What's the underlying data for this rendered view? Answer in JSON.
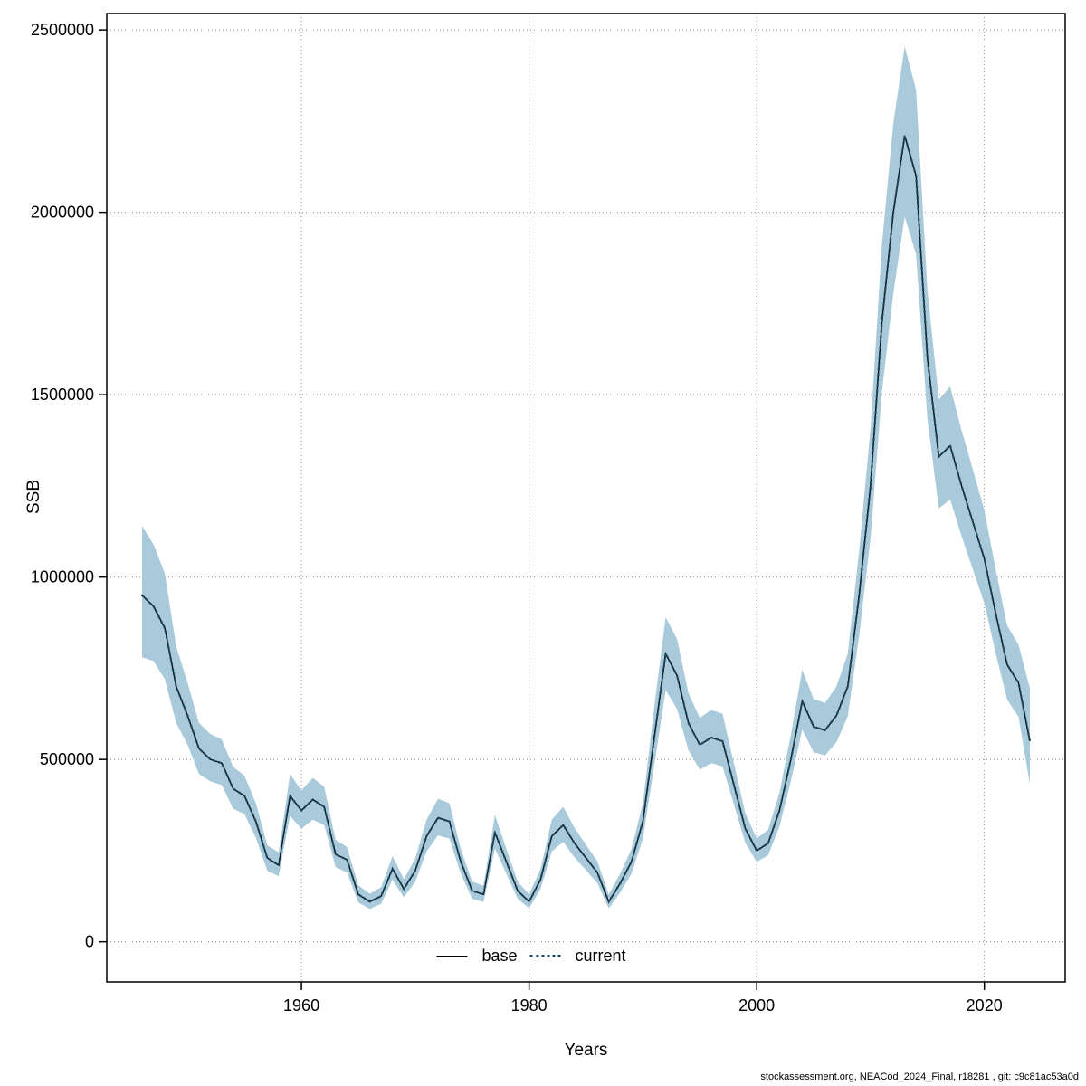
{
  "footer": "stockassessment.org, NEACod_2024_Final, r18281 , git: c9c81ac53a0d",
  "chart_data": {
    "type": "line",
    "title": "",
    "xlabel": "Years",
    "ylabel": "SSB",
    "xlim": [
      1942.9,
      2027.1
    ],
    "ylim": [
      0,
      2500000
    ],
    "x_ticks": [
      1960,
      1980,
      2000,
      2020
    ],
    "y_ticks": [
      0,
      500000,
      1000000,
      1500000,
      2000000,
      2500000
    ],
    "grid": "dotted",
    "legend_position": "bottom-center-inside",
    "band_color": "#a9cadb",
    "grid_color": "#8c8c8c",
    "legend": [
      {
        "label": "base",
        "style": "solid",
        "color": "#000000"
      },
      {
        "label": "current",
        "style": "dotted",
        "color": "#1c4557"
      }
    ],
    "x": [
      1946,
      1947,
      1948,
      1949,
      1950,
      1951,
      1952,
      1953,
      1954,
      1955,
      1956,
      1957,
      1958,
      1959,
      1960,
      1961,
      1962,
      1963,
      1964,
      1965,
      1966,
      1967,
      1968,
      1969,
      1970,
      1971,
      1972,
      1973,
      1974,
      1975,
      1976,
      1977,
      1978,
      1979,
      1980,
      1981,
      1982,
      1983,
      1984,
      1985,
      1986,
      1987,
      1988,
      1989,
      1990,
      1991,
      1992,
      1993,
      1994,
      1995,
      1996,
      1997,
      1998,
      1999,
      2000,
      2001,
      2002,
      2003,
      2004,
      2005,
      2006,
      2007,
      2008,
      2009,
      2010,
      2011,
      2012,
      2013,
      2014,
      2015,
      2016,
      2017,
      2018,
      2019,
      2020,
      2021,
      2022,
      2023,
      2024
    ],
    "series": [
      {
        "name": "base",
        "style": "solid",
        "color": "#000000",
        "y": [
          950000,
          920000,
          860000,
          700000,
          620000,
          530000,
          500000,
          490000,
          420000,
          400000,
          330000,
          230000,
          210000,
          400000,
          360000,
          390000,
          370000,
          240000,
          225000,
          130000,
          110000,
          125000,
          200000,
          145000,
          195000,
          290000,
          340000,
          330000,
          220000,
          140000,
          130000,
          300000,
          220000,
          140000,
          110000,
          170000,
          290000,
          320000,
          270000,
          230000,
          190000,
          110000,
          160000,
          220000,
          330000,
          560000,
          790000,
          730000,
          600000,
          540000,
          560000,
          550000,
          430000,
          310000,
          250000,
          270000,
          360000,
          500000,
          660000,
          590000,
          580000,
          620000,
          700000,
          950000,
          1250000,
          1700000,
          2000000,
          2210000,
          2100000,
          1600000,
          1330000,
          1360000,
          1250000,
          1150000,
          1050000,
          900000,
          760000,
          710000,
          550000
        ]
      },
      {
        "name": "current",
        "style": "dotted",
        "color": "#1c4557",
        "y": [
          950000,
          920000,
          860000,
          700000,
          620000,
          530000,
          500000,
          490000,
          420000,
          400000,
          330000,
          230000,
          210000,
          400000,
          360000,
          390000,
          370000,
          240000,
          225000,
          130000,
          110000,
          125000,
          200000,
          145000,
          195000,
          290000,
          340000,
          330000,
          220000,
          140000,
          130000,
          300000,
          220000,
          140000,
          110000,
          170000,
          290000,
          320000,
          270000,
          230000,
          190000,
          110000,
          160000,
          220000,
          330000,
          560000,
          790000,
          730000,
          600000,
          540000,
          560000,
          550000,
          430000,
          310000,
          250000,
          270000,
          360000,
          500000,
          660000,
          590000,
          580000,
          620000,
          700000,
          950000,
          1250000,
          1700000,
          2000000,
          2210000,
          2100000,
          1600000,
          1330000,
          1360000,
          1250000,
          1150000,
          1050000,
          900000,
          760000,
          710000,
          550000
        ],
        "lower": [
          780000,
          770000,
          720000,
          600000,
          540000,
          460000,
          440000,
          430000,
          365000,
          350000,
          285000,
          195000,
          180000,
          345000,
          310000,
          335000,
          320000,
          205000,
          190000,
          108000,
          90000,
          104000,
          170000,
          122000,
          165000,
          248000,
          292000,
          283000,
          187000,
          118000,
          109000,
          256000,
          187000,
          118000,
          92000,
          144000,
          248000,
          274000,
          231000,
          196000,
          161000,
          92000,
          135000,
          187000,
          283000,
          484000,
          690000,
          638000,
          525000,
          472000,
          490000,
          481000,
          376000,
          271000,
          219000,
          237000,
          316000,
          440000,
          582000,
          520000,
          511000,
          547000,
          618000,
          840000,
          1107000,
          1508000,
          1778000,
          1988000,
          1885000,
          1432000,
          1188000,
          1213000,
          1112000,
          1020000,
          928000,
          791000,
          664000,
          617000,
          432000
        ],
        "upper": [
          1140000,
          1090000,
          1010000,
          810000,
          710000,
          600000,
          570000,
          555000,
          480000,
          455000,
          380000,
          265000,
          245000,
          460000,
          415000,
          450000,
          425000,
          280000,
          260000,
          155000,
          132000,
          150000,
          235000,
          172000,
          228000,
          335000,
          392000,
          380000,
          255000,
          165000,
          154000,
          348000,
          255000,
          165000,
          130000,
          199000,
          335000,
          370000,
          312000,
          266000,
          221000,
          130000,
          187000,
          255000,
          380000,
          645000,
          890000,
          830000,
          682000,
          614000,
          636000,
          625000,
          489000,
          352000,
          284000,
          307000,
          409000,
          568000,
          746000,
          666000,
          655000,
          700000,
          790000,
          1072000,
          1408000,
          1912000,
          2244000,
          2455000,
          2336000,
          1785000,
          1487000,
          1522000,
          1402000,
          1294000,
          1183000,
          1021000,
          867000,
          815000,
          695000
        ]
      }
    ]
  }
}
